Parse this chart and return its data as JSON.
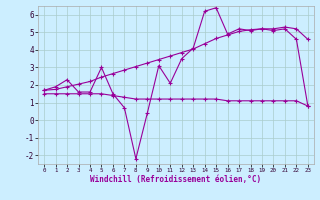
{
  "xlabel": "Windchill (Refroidissement éolien,°C)",
  "background_color": "#cceeff",
  "grid_color": "#aacccc",
  "line_color": "#990099",
  "x_values": [
    0,
    1,
    2,
    3,
    4,
    5,
    6,
    7,
    8,
    9,
    10,
    11,
    12,
    13,
    14,
    15,
    16,
    17,
    18,
    19,
    20,
    21,
    22,
    23
  ],
  "line1_y": [
    1.7,
    1.9,
    2.3,
    1.6,
    1.6,
    3.0,
    1.5,
    0.7,
    -2.2,
    0.4,
    3.1,
    2.1,
    3.5,
    4.1,
    6.2,
    6.4,
    4.9,
    5.2,
    5.1,
    5.2,
    5.1,
    5.2,
    4.6,
    0.8
  ],
  "line2_y": [
    1.7,
    1.75,
    1.9,
    2.05,
    2.2,
    2.45,
    2.65,
    2.85,
    3.05,
    3.25,
    3.45,
    3.65,
    3.85,
    4.05,
    4.35,
    4.65,
    4.85,
    5.05,
    5.15,
    5.2,
    5.2,
    5.3,
    5.2,
    4.6
  ],
  "line3_y": [
    1.5,
    1.5,
    1.5,
    1.5,
    1.5,
    1.5,
    1.4,
    1.3,
    1.2,
    1.2,
    1.2,
    1.2,
    1.2,
    1.2,
    1.2,
    1.2,
    1.1,
    1.1,
    1.1,
    1.1,
    1.1,
    1.1,
    1.1,
    0.8
  ],
  "ylim": [
    -2.5,
    6.5
  ],
  "xlim": [
    -0.5,
    23.5
  ],
  "yticks": [
    -2,
    -1,
    0,
    1,
    2,
    3,
    4,
    5,
    6
  ],
  "xticks": [
    0,
    1,
    2,
    3,
    4,
    5,
    6,
    7,
    8,
    9,
    10,
    11,
    12,
    13,
    14,
    15,
    16,
    17,
    18,
    19,
    20,
    21,
    22,
    23
  ]
}
